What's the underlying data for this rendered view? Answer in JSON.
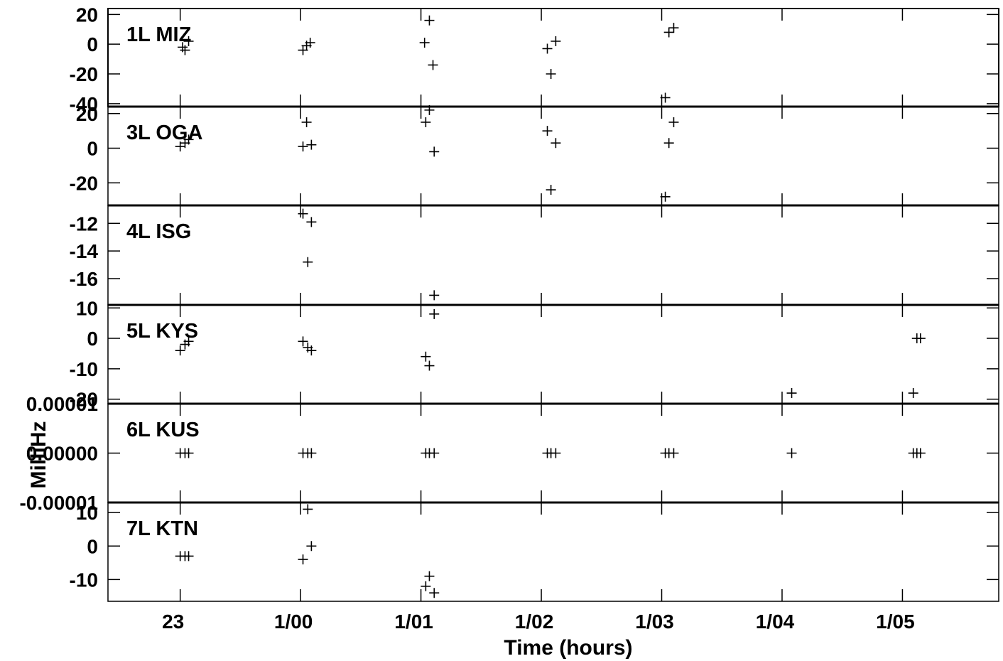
{
  "chart_data": {
    "type": "scatter",
    "marker": "plus",
    "x_axis": {
      "label": "Time (hours)",
      "range": [
        22.4,
        29.8
      ],
      "ticks": [
        {
          "value": 23,
          "label": "23"
        },
        {
          "value": 24,
          "label": "1/00"
        },
        {
          "value": 25,
          "label": "1/01"
        },
        {
          "value": 26,
          "label": "1/02"
        },
        {
          "value": 27,
          "label": "1/03"
        },
        {
          "value": 28,
          "label": "1/04"
        },
        {
          "value": 29,
          "label": "1/05"
        }
      ]
    },
    "y_axis_label": "MilliHz",
    "panels": [
      {
        "label": "1L MIZ",
        "ylim": [
          -42,
          24
        ],
        "yticks": [
          {
            "value": 20,
            "label": "20"
          },
          {
            "value": 0,
            "label": "0"
          },
          {
            "value": -20,
            "label": "-20"
          },
          {
            "value": -40,
            "label": "-40"
          }
        ],
        "points": [
          {
            "x": 23.02,
            "y": -2
          },
          {
            "x": 23.04,
            "y": -4
          },
          {
            "x": 23.07,
            "y": 2
          },
          {
            "x": 24.02,
            "y": -4
          },
          {
            "x": 24.05,
            "y": -1
          },
          {
            "x": 24.08,
            "y": 1
          },
          {
            "x": 25.03,
            "y": 1
          },
          {
            "x": 25.07,
            "y": 16
          },
          {
            "x": 25.1,
            "y": -14
          },
          {
            "x": 26.05,
            "y": -3
          },
          {
            "x": 26.08,
            "y": -20
          },
          {
            "x": 26.12,
            "y": 2
          },
          {
            "x": 27.03,
            "y": -36
          },
          {
            "x": 27.06,
            "y": 8
          },
          {
            "x": 27.1,
            "y": 11
          }
        ]
      },
      {
        "label": "3L OGA",
        "ylim": [
          -33,
          24
        ],
        "yticks": [
          {
            "value": 20,
            "label": "20"
          },
          {
            "value": 0,
            "label": "0"
          },
          {
            "value": -20,
            "label": "-20"
          }
        ],
        "points": [
          {
            "x": 23.0,
            "y": 1
          },
          {
            "x": 23.04,
            "y": 3
          },
          {
            "x": 23.07,
            "y": 5
          },
          {
            "x": 24.02,
            "y": 1
          },
          {
            "x": 24.05,
            "y": 15
          },
          {
            "x": 24.09,
            "y": 2
          },
          {
            "x": 25.04,
            "y": 15
          },
          {
            "x": 25.07,
            "y": 22
          },
          {
            "x": 25.11,
            "y": -2
          },
          {
            "x": 26.05,
            "y": 10
          },
          {
            "x": 26.08,
            "y": -24
          },
          {
            "x": 26.12,
            "y": 3
          },
          {
            "x": 27.03,
            "y": -28
          },
          {
            "x": 27.06,
            "y": 3
          },
          {
            "x": 27.1,
            "y": 15
          }
        ]
      },
      {
        "label": "4L ISG",
        "ylim": [
          -17.9,
          -10.7
        ],
        "yticks": [
          {
            "value": -12,
            "label": "-12"
          },
          {
            "value": -14,
            "label": "-14"
          },
          {
            "value": -16,
            "label": "-16"
          }
        ],
        "points": [
          {
            "x": 24.02,
            "y": -11.3
          },
          {
            "x": 24.06,
            "y": -14.8
          },
          {
            "x": 24.09,
            "y": -11.9
          },
          {
            "x": 25.11,
            "y": -17.2
          }
        ]
      },
      {
        "label": "5L KYS",
        "ylim": [
          -21.5,
          11
        ],
        "yticks": [
          {
            "value": 10,
            "label": "10"
          },
          {
            "value": 0,
            "label": "0"
          },
          {
            "value": -10,
            "label": "-10"
          },
          {
            "value": -20,
            "label": "-20"
          }
        ],
        "points": [
          {
            "x": 23.0,
            "y": -4
          },
          {
            "x": 23.04,
            "y": -2
          },
          {
            "x": 23.07,
            "y": -1
          },
          {
            "x": 24.02,
            "y": -1
          },
          {
            "x": 24.06,
            "y": -3
          },
          {
            "x": 24.09,
            "y": -4
          },
          {
            "x": 25.04,
            "y": -6
          },
          {
            "x": 25.07,
            "y": -9
          },
          {
            "x": 25.11,
            "y": 8
          },
          {
            "x": 28.08,
            "y": -18
          },
          {
            "x": 29.09,
            "y": -18
          },
          {
            "x": 29.12,
            "y": 0
          },
          {
            "x": 29.15,
            "y": 0
          }
        ]
      },
      {
        "label": "6L KUS",
        "ylim": [
          -1e-05,
          1e-05
        ],
        "yticks": [
          {
            "value": 1e-05,
            "label": "0.00001"
          },
          {
            "value": 0,
            "label": "0.00000"
          },
          {
            "value": -1e-05,
            "label": "-0.00001"
          }
        ],
        "points": [
          {
            "x": 23.0,
            "y": 0
          },
          {
            "x": 23.04,
            "y": 0
          },
          {
            "x": 23.07,
            "y": 0
          },
          {
            "x": 24.02,
            "y": 0
          },
          {
            "x": 24.06,
            "y": 0
          },
          {
            "x": 24.09,
            "y": 0
          },
          {
            "x": 25.04,
            "y": 0
          },
          {
            "x": 25.07,
            "y": 0
          },
          {
            "x": 25.11,
            "y": 0
          },
          {
            "x": 26.05,
            "y": 0
          },
          {
            "x": 26.08,
            "y": 0
          },
          {
            "x": 26.12,
            "y": 0
          },
          {
            "x": 27.03,
            "y": 0
          },
          {
            "x": 27.06,
            "y": 0
          },
          {
            "x": 27.1,
            "y": 0
          },
          {
            "x": 28.08,
            "y": 0
          },
          {
            "x": 29.09,
            "y": 0
          },
          {
            "x": 29.12,
            "y": 0
          },
          {
            "x": 29.15,
            "y": 0
          }
        ]
      },
      {
        "label": "7L KTN",
        "ylim": [
          -16.5,
          13
        ],
        "yticks": [
          {
            "value": 10,
            "label": "10"
          },
          {
            "value": 0,
            "label": "0"
          },
          {
            "value": -10,
            "label": "-10"
          }
        ],
        "points": [
          {
            "x": 23.0,
            "y": -3
          },
          {
            "x": 23.04,
            "y": -3
          },
          {
            "x": 23.07,
            "y": -3
          },
          {
            "x": 24.02,
            "y": -4
          },
          {
            "x": 24.06,
            "y": 11
          },
          {
            "x": 24.09,
            "y": 0
          },
          {
            "x": 25.04,
            "y": -12
          },
          {
            "x": 25.07,
            "y": -9
          },
          {
            "x": 25.11,
            "y": -14
          }
        ]
      }
    ]
  }
}
